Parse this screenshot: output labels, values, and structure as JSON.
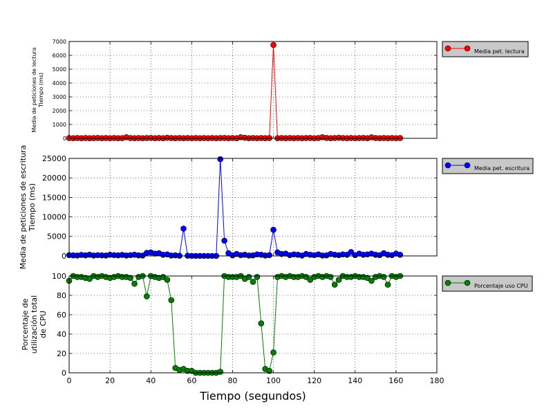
{
  "chart_data": [
    {
      "type": "line",
      "ylabel": [
        "Media de peticiones de lectura",
        "Tiempo (ms)"
      ],
      "xlim": [
        0,
        180
      ],
      "ylim": [
        0,
        7000
      ],
      "yticks": [
        0,
        1000,
        2000,
        3000,
        4000,
        5000,
        6000,
        7000
      ],
      "grid": true,
      "legend": {
        "placement": "right-outside",
        "entries": [
          "Media pet. lectura"
        ]
      },
      "series": [
        {
          "name": "Media pet. lectura",
          "color": "#ff0000",
          "x": [
            0,
            2,
            4,
            6,
            8,
            10,
            12,
            14,
            16,
            18,
            20,
            22,
            24,
            26,
            28,
            30,
            32,
            34,
            36,
            38,
            40,
            42,
            44,
            46,
            48,
            50,
            52,
            54,
            56,
            58,
            60,
            62,
            64,
            66,
            68,
            70,
            72,
            74,
            76,
            78,
            80,
            82,
            84,
            86,
            88,
            90,
            92,
            94,
            96,
            98,
            100,
            102,
            104,
            106,
            108,
            110,
            112,
            114,
            116,
            118,
            120,
            122,
            124,
            126,
            128,
            130,
            132,
            134,
            136,
            138,
            140,
            142,
            144,
            146,
            148,
            150,
            152,
            154,
            156,
            158,
            160,
            162
          ],
          "y": [
            20,
            10,
            20,
            10,
            20,
            10,
            15,
            30,
            10,
            20,
            10,
            20,
            10,
            15,
            80,
            20,
            10,
            20,
            10,
            20,
            30,
            10,
            20,
            10,
            40,
            20,
            10,
            20,
            10,
            20,
            10,
            20,
            10,
            20,
            10,
            20,
            10,
            20,
            30,
            10,
            20,
            10,
            80,
            40,
            10,
            20,
            10,
            20,
            10,
            20,
            6750,
            10,
            20,
            10,
            20,
            10,
            20,
            10,
            20,
            30,
            10,
            20,
            80,
            30,
            10,
            20,
            40,
            20,
            10,
            20,
            10,
            20,
            30,
            10,
            70,
            20,
            10,
            20,
            10,
            20,
            10,
            20
          ]
        }
      ]
    },
    {
      "type": "line",
      "ylabel": [
        "Media de peticiones de escritura",
        "Tiempo (ms)"
      ],
      "xlim": [
        0,
        180
      ],
      "ylim": [
        0,
        25000
      ],
      "yticks": [
        0,
        5000,
        10000,
        15000,
        20000,
        25000
      ],
      "grid": true,
      "legend": {
        "placement": "right-outside",
        "entries": [
          "Media pet. escritura"
        ]
      },
      "series": [
        {
          "name": "Media pet. escritura",
          "color": "#0000ff",
          "x": [
            0,
            2,
            4,
            6,
            8,
            10,
            12,
            14,
            16,
            18,
            20,
            22,
            24,
            26,
            28,
            30,
            32,
            34,
            36,
            38,
            40,
            42,
            44,
            46,
            48,
            50,
            52,
            54,
            56,
            58,
            60,
            62,
            64,
            66,
            68,
            70,
            72,
            74,
            76,
            78,
            80,
            82,
            84,
            86,
            88,
            90,
            92,
            94,
            96,
            98,
            100,
            102,
            104,
            106,
            108,
            110,
            112,
            114,
            116,
            118,
            120,
            122,
            124,
            126,
            128,
            130,
            132,
            134,
            136,
            138,
            140,
            142,
            144,
            146,
            148,
            150,
            152,
            154,
            156,
            158,
            160,
            162
          ],
          "y": [
            200,
            150,
            100,
            250,
            150,
            300,
            100,
            200,
            150,
            100,
            300,
            200,
            150,
            250,
            100,
            200,
            300,
            150,
            100,
            800,
            900,
            600,
            700,
            300,
            400,
            100,
            150,
            50,
            7000,
            50,
            0,
            0,
            0,
            0,
            0,
            0,
            0,
            24800,
            3900,
            700,
            150,
            500,
            200,
            300,
            100,
            150,
            400,
            300,
            100,
            200,
            6700,
            900,
            500,
            600,
            200,
            400,
            300,
            100,
            500,
            300,
            200,
            400,
            100,
            150,
            500,
            300,
            200,
            400,
            300,
            1000,
            200,
            600,
            300,
            400,
            600,
            300,
            200,
            700,
            300,
            200,
            600,
            300
          ]
        }
      ]
    },
    {
      "type": "line",
      "xlabel": "Tiempo (segundos)",
      "ylabel": [
        "Porcentaje de",
        "utilización total",
        "de CPU"
      ],
      "xlim": [
        0,
        180
      ],
      "ylim": [
        0,
        100
      ],
      "xticks": [
        0,
        20,
        40,
        60,
        80,
        100,
        120,
        140,
        160,
        180
      ],
      "yticks": [
        0,
        20,
        40,
        60,
        80,
        100
      ],
      "grid": true,
      "legend": {
        "placement": "right-outside",
        "entries": [
          "Porcentaje uso CPU"
        ]
      },
      "series": [
        {
          "name": "Porcentaje uso CPU",
          "color": "#008000",
          "x": [
            0,
            2,
            4,
            6,
            8,
            10,
            12,
            14,
            16,
            18,
            20,
            22,
            24,
            26,
            28,
            30,
            32,
            34,
            36,
            38,
            40,
            42,
            44,
            46,
            48,
            50,
            52,
            54,
            56,
            58,
            60,
            62,
            64,
            66,
            68,
            70,
            72,
            74,
            76,
            78,
            80,
            82,
            84,
            86,
            88,
            90,
            92,
            94,
            96,
            98,
            100,
            102,
            104,
            106,
            108,
            110,
            112,
            114,
            116,
            118,
            120,
            122,
            124,
            126,
            128,
            130,
            132,
            134,
            136,
            138,
            140,
            142,
            144,
            146,
            148,
            150,
            152,
            154,
            156,
            158,
            160,
            162
          ],
          "y": [
            95,
            100,
            99,
            99,
            98,
            97,
            100,
            99,
            100,
            99,
            98,
            99,
            100,
            99,
            99,
            98,
            92,
            99,
            100,
            79,
            100,
            99,
            98,
            99,
            96,
            75,
            5,
            3,
            4,
            2,
            2,
            0,
            0,
            0,
            0,
            0,
            0,
            1,
            100,
            99,
            99,
            99,
            100,
            97,
            99,
            94,
            99,
            51,
            4,
            2,
            21,
            99,
            100,
            99,
            100,
            99,
            99,
            100,
            99,
            96,
            99,
            100,
            99,
            100,
            99,
            91,
            96,
            100,
            99,
            99,
            100,
            99,
            99,
            98,
            95,
            99,
            100,
            99,
            91,
            100,
            99,
            100
          ]
        }
      ]
    }
  ]
}
